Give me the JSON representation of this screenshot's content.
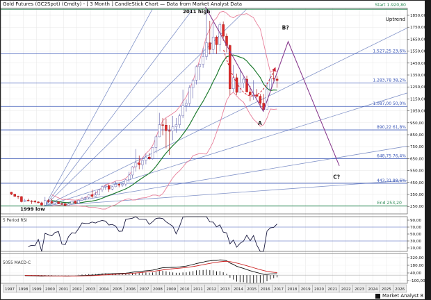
{
  "title": "Gold Futures (GC2Spot) (Cmdty) -  [ 3 Month ] CandleStick Chart — Data from Market Analyst Data",
  "taskbar": {
    "label": "Market Analyst 8"
  },
  "chart_data": {
    "type": "candlestick",
    "title": "Gold Futures (GC2Spot) (Cmdty) - [ 3 Month ] CandleStick Chart",
    "x_years": [
      1997,
      1998,
      1999,
      2000,
      2001,
      2002,
      2003,
      2004,
      2005,
      2006,
      2007,
      2008,
      2009,
      2010,
      2011,
      2012,
      2013,
      2014,
      2015,
      2016,
      2017,
      2018,
      2019,
      2020,
      2021,
      2022,
      2023,
      2024,
      2025,
      2026
    ],
    "price_ticks": [
      1850,
      1750,
      1650,
      1550,
      1450,
      1350,
      1250,
      1150,
      1050,
      950,
      850,
      750,
      650,
      550,
      450,
      350,
      250
    ],
    "candles": [
      [
        369,
        372,
        345,
        352
      ],
      [
        352,
        356,
        331,
        334
      ],
      [
        334,
        340,
        312,
        332
      ],
      [
        332,
        336,
        283,
        290
      ],
      [
        290,
        313,
        287,
        301
      ],
      [
        301,
        315,
        292,
        296
      ],
      [
        296,
        302,
        271,
        293
      ],
      [
        293,
        303,
        276,
        287
      ],
      [
        287,
        292,
        276,
        280
      ],
      [
        280,
        289,
        258,
        261
      ],
      [
        261,
        329,
        252,
        299
      ],
      [
        299,
        310,
        278,
        290
      ],
      [
        290,
        316,
        270,
        278
      ],
      [
        278,
        295,
        270,
        288
      ],
      [
        288,
        292,
        269,
        273
      ],
      [
        273,
        278,
        263,
        272
      ],
      [
        272,
        274,
        254,
        258
      ],
      [
        258,
        275,
        255,
        270
      ],
      [
        270,
        295,
        262,
        293
      ],
      [
        293,
        296,
        271,
        276
      ],
      [
        276,
        308,
        273,
        301
      ],
      [
        301,
        330,
        296,
        318
      ],
      [
        318,
        330,
        300,
        323
      ],
      [
        323,
        352,
        310,
        347
      ],
      [
        347,
        390,
        320,
        334
      ],
      [
        334,
        375,
        330,
        346
      ],
      [
        346,
        394,
        342,
        388
      ],
      [
        388,
        425,
        370,
        415
      ],
      [
        415,
        432,
        388,
        423
      ],
      [
        423,
        433,
        371,
        395
      ],
      [
        395,
        420,
        385,
        415
      ],
      [
        415,
        458,
        411,
        435
      ],
      [
        435,
        446,
        410,
        428
      ],
      [
        428,
        442,
        414,
        437
      ],
      [
        437,
        480,
        418,
        473
      ],
      [
        473,
        540,
        456,
        513
      ],
      [
        513,
        588,
        489,
        582
      ],
      [
        582,
        730,
        542,
        613
      ],
      [
        613,
        676,
        560,
        599
      ],
      [
        599,
        655,
        559,
        635
      ],
      [
        635,
        692,
        602,
        663
      ],
      [
        663,
        698,
        640,
        650
      ],
      [
        650,
        747,
        642,
        743
      ],
      [
        743,
        846,
        696,
        833
      ],
      [
        833,
        1033,
        830,
        933
      ],
      [
        933,
        990,
        845,
        930
      ],
      [
        930,
        986,
        736,
        884
      ],
      [
        884,
        931,
        681,
        882
      ],
      [
        882,
        1007,
        802,
        916
      ],
      [
        916,
        990,
        865,
        934
      ],
      [
        934,
        1026,
        905,
        1008
      ],
      [
        1008,
        1227,
        989,
        1096
      ],
      [
        1096,
        1145,
        1044,
        1113
      ],
      [
        1113,
        1265,
        1084,
        1244
      ],
      [
        1244,
        1316,
        1155,
        1307
      ],
      [
        1307,
        1431,
        1271,
        1420
      ],
      [
        1420,
        1447,
        1308,
        1439
      ],
      [
        1439,
        1577,
        1410,
        1505
      ],
      [
        1505,
        1920,
        1478,
        1620
      ],
      [
        1620,
        1804,
        1523,
        1564
      ],
      [
        1564,
        1790,
        1530,
        1668
      ],
      [
        1668,
        1680,
        1527,
        1604
      ],
      [
        1604,
        1790,
        1547,
        1772
      ],
      [
        1772,
        1798,
        1636,
        1675
      ],
      [
        1675,
        1697,
        1539,
        1597
      ],
      [
        1597,
        1605,
        1180,
        1235
      ],
      [
        1235,
        1434,
        1207,
        1327
      ],
      [
        1327,
        1361,
        1182,
        1205
      ],
      [
        1205,
        1392,
        1203,
        1284
      ],
      [
        1284,
        1334,
        1240,
        1315
      ],
      [
        1315,
        1345,
        1206,
        1208
      ],
      [
        1208,
        1256,
        1130,
        1184
      ],
      [
        1184,
        1307,
        1142,
        1184
      ],
      [
        1184,
        1232,
        1162,
        1172
      ],
      [
        1172,
        1191,
        1077,
        1114
      ],
      [
        1114,
        1191,
        1046,
        1061
      ],
      [
        1061,
        1285,
        1061,
        1233
      ],
      [
        1233,
        1362,
        1208,
        1321
      ],
      [
        1321,
        1375,
        1302,
        1316
      ],
      [
        1316,
        1343,
        1243,
        1305
      ]
    ],
    "start_quarter_year": 1997,
    "fib": {
      "levels": [
        {
          "price": 1527.25,
          "label": "1.527,25 23,6%"
        },
        {
          "price": 1283.78,
          "label": "1.283,78 38,2%"
        },
        {
          "price": 1087.0,
          "label": "1.087,00 50,0%"
        },
        {
          "price": 890.22,
          "label": "890,22 61,8%"
        },
        {
          "price": 648.75,
          "label": "648,75 76,4%"
        },
        {
          "price": 443.31,
          "label": "443,31 88,6%"
        }
      ]
    },
    "range_lines": {
      "start": {
        "price": 1920.8,
        "label": "Start 1.920,80"
      },
      "end": {
        "price": 253.2,
        "label": "End 253,20"
      }
    },
    "fan": {
      "origin": {
        "year": 1999.6,
        "price": 252
      },
      "targets": [
        [
          2007.6,
          1900
        ],
        [
          2010.6,
          1900
        ],
        [
          2014.6,
          1900
        ],
        [
          2026.85,
          1760
        ],
        [
          2026.85,
          1210
        ],
        [
          2026.85,
          760
        ],
        [
          2026.85,
          470
        ]
      ],
      "uptrend_label": "Uptrend"
    },
    "wave": {
      "points": [
        [
          2011.55,
          1920
        ],
        [
          2015.85,
          1046
        ],
        [
          2017.7,
          1630
        ],
        [
          2021.5,
          590
        ]
      ],
      "labels": [
        {
          "text": "A",
          "year": 2015.6,
          "price": 930,
          "anchor": "middle"
        },
        {
          "text": "B?",
          "year": 2017.5,
          "price": 1730,
          "anchor": "middle"
        },
        {
          "text": "C?",
          "year": 2021.3,
          "price": 480,
          "anchor": "middle"
        }
      ]
    },
    "annotations": [
      {
        "text": "2011 high",
        "year": 2011.9,
        "price": 1868,
        "anchor": "end"
      },
      {
        "text": "1999 low",
        "year": 1998.7,
        "price": 212,
        "anchor": "middle"
      }
    ],
    "arrow": {
      "from": [
        2012.9,
        1560
      ],
      "ctrl": [
        2014.7,
        880
      ],
      "to": [
        2016.7,
        1400
      ]
    },
    "rsi_panel": {
      "label": "5 Period RSI",
      "period": 5,
      "ticks": [
        90,
        70,
        50,
        30,
        10
      ],
      "guides": [
        70,
        30
      ]
    },
    "macd_panel": {
      "label": "5055 MACD-C",
      "ticks": [
        320,
        180,
        40,
        -100
      ],
      "fast": 12,
      "slow": 26,
      "signal": 9
    },
    "colors": {
      "up_candle": "#ffffff",
      "up_stroke": "#6a6ab0",
      "down_candle": "#dd2a2a",
      "down_stroke": "#aa1515",
      "ma": "#1d7a2e",
      "envelope": "#e87f9a",
      "fib": "#3a57b8",
      "fan": "#8092c8",
      "greenline": "#2e8b57",
      "wave": "#8a3d8f",
      "arrow": "#cc2233",
      "rsi": "#1a1a40",
      "macd": "#111111",
      "signal": "#cc2222",
      "grid": "#e6e6e6",
      "axis_text": "#111111",
      "scrollbar": "#1b1b1b"
    }
  }
}
